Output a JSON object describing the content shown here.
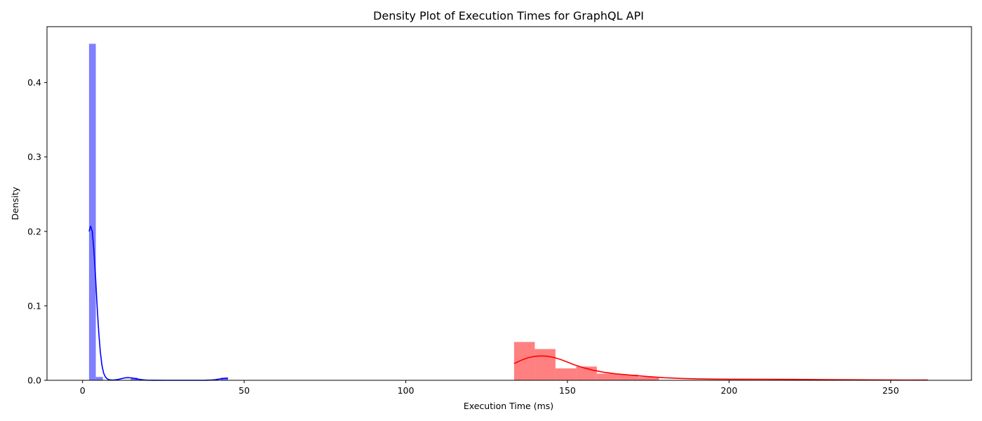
{
  "chart_data": {
    "type": "histogram",
    "title": "Density Plot of Execution Times for GraphQL API",
    "xlabel": "Execution Time (ms)",
    "ylabel": "Density",
    "xlim": [
      -11,
      275
    ],
    "ylim": [
      0,
      0.475
    ],
    "x_ticks": [
      0,
      50,
      100,
      150,
      200,
      250
    ],
    "y_ticks": [
      0.0,
      0.1,
      0.2,
      0.3,
      0.4
    ],
    "x_tick_labels": [
      "0",
      "50",
      "100",
      "150",
      "200",
      "250"
    ],
    "y_tick_labels": [
      "0.0",
      "0.1",
      "0.2",
      "0.3",
      "0.4"
    ],
    "grid": false,
    "series": [
      {
        "color": "#0000ff",
        "bar_color": "#8080ff",
        "histogram": {
          "bin_edges": [
            2.0,
            4.1,
            6.3,
            8.4,
            10.6,
            12.7,
            14.9,
            17.0,
            19.2,
            21.3,
            23.5,
            25.6,
            27.8,
            29.9,
            32.1,
            34.2,
            36.4,
            38.5,
            40.7,
            42.8,
            45.0
          ],
          "densities": [
            0.452,
            0.0045,
            0.0,
            0.0,
            0.0,
            0.0,
            0.0035,
            0.0,
            0.0,
            0.0,
            0.0,
            0.0,
            0.0,
            0.0,
            0.0,
            0.0,
            0.0,
            0.0,
            0.0,
            0.0035
          ]
        },
        "kde": {
          "x": [
            2.0,
            2.5,
            3.0,
            3.5,
            4.0,
            4.5,
            5.0,
            5.5,
            6.0,
            6.5,
            7.0,
            7.5,
            8.0,
            9.0,
            10.0,
            11.0,
            12.0,
            13.0,
            14.0,
            15.0,
            16.0,
            17.0,
            18.0,
            19.0,
            20.0,
            22.0,
            25.0,
            30.0,
            35.0,
            38.0,
            40.0,
            41.0,
            42.0,
            43.0,
            44.0,
            45.0
          ],
          "y": [
            0.2,
            0.207,
            0.2,
            0.175,
            0.14,
            0.1,
            0.065,
            0.038,
            0.02,
            0.01,
            0.005,
            0.0025,
            0.001,
            0.0003,
            0.0005,
            0.0012,
            0.0022,
            0.0032,
            0.0036,
            0.0033,
            0.0026,
            0.0017,
            0.001,
            0.0005,
            0.0002,
            0.0001,
            0.0,
            0.0,
            0.0,
            0.0001,
            0.0004,
            0.0008,
            0.0015,
            0.0022,
            0.0027,
            0.003
          ]
        }
      },
      {
        "color": "#ff0000",
        "bar_color": "#ff8080",
        "histogram": {
          "bin_edges": [
            133.5,
            139.9,
            146.3,
            152.7,
            159.1,
            165.5,
            171.9,
            178.3,
            184.7,
            191.1,
            197.5,
            203.9,
            210.3,
            216.7,
            223.1,
            229.5,
            235.9,
            242.3,
            248.7,
            255.1,
            261.5
          ],
          "densities": [
            0.0515,
            0.042,
            0.016,
            0.0185,
            0.009,
            0.0075,
            0.0045,
            0.0,
            0.0,
            0.0,
            0.0,
            0.0,
            0.0,
            0.0,
            0.0,
            0.0,
            0.0,
            0.0,
            0.0,
            0.0
          ]
        },
        "kde": {
          "x": [
            133.5,
            136.0,
            138.0,
            140.0,
            142.0,
            144.0,
            146.0,
            148.0,
            150.0,
            152.0,
            155.0,
            158.0,
            161.0,
            165.0,
            170.0,
            175.0,
            180.0,
            185.0,
            190.0,
            195.0,
            200.0,
            210.0,
            220.0,
            230.0,
            240.0,
            250.0,
            255.0,
            261.5
          ],
          "y": [
            0.0225,
            0.0275,
            0.0305,
            0.0322,
            0.0328,
            0.0322,
            0.0305,
            0.0278,
            0.0245,
            0.021,
            0.0168,
            0.0135,
            0.011,
            0.0087,
            0.0068,
            0.005,
            0.0035,
            0.0025,
            0.0019,
            0.0016,
            0.0015,
            0.0014,
            0.0012,
            0.0009,
            0.0006,
            0.0004,
            0.0003,
            0.0004
          ]
        }
      }
    ]
  }
}
